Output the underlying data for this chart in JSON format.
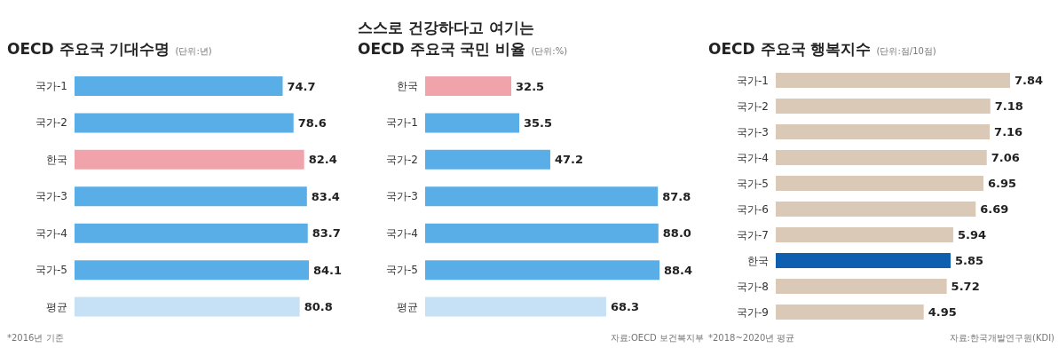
{
  "chart_data": [
    {
      "type": "bar",
      "orientation": "horizontal",
      "title": "OECD 주요국 기대수명",
      "subtitle": "(단위:년)",
      "categories": [
        "국가-1",
        "국가-2",
        "한국",
        "국가-3",
        "국가-4",
        "국가-5",
        "평균"
      ],
      "values": [
        74.7,
        78.6,
        82.4,
        83.4,
        83.7,
        84.1,
        80.8
      ],
      "colors": [
        "#5aaee8",
        "#5aaee8",
        "#f0a3aa",
        "#5aaee8",
        "#5aaee8",
        "#5aaee8",
        "#c6e1f6"
      ],
      "data_labels": true,
      "annotations": [
        "*2016년 기준"
      ]
    },
    {
      "type": "bar",
      "orientation": "horizontal",
      "title": "스스로 건강하다고 여기는\nOECD 주요국 국민 비율",
      "subtitle": "(단위:%)",
      "categories": [
        "한국",
        "국가-1",
        "국가-2",
        "국가-3",
        "국가-4",
        "국가-5",
        "평균"
      ],
      "values": [
        32.5,
        35.5,
        47.2,
        87.8,
        88.0,
        88.4,
        68.3
      ],
      "colors": [
        "#f0a3aa",
        "#5aaee8",
        "#5aaee8",
        "#5aaee8",
        "#5aaee8",
        "#5aaee8",
        "#c6e1f6"
      ],
      "value_labels": [
        "32.5",
        "35.5",
        "47.2",
        "87.8",
        "88.0",
        "88.4",
        "68.3"
      ],
      "annotations": [
        "자료:OECD 보건복지부"
      ]
    },
    {
      "type": "bar",
      "orientation": "horizontal",
      "title": "OECD 주요국 행복지수",
      "subtitle": "(단위:점/10점)",
      "categories": [
        "국가-1",
        "국가-2",
        "국가-3",
        "국가-4",
        "국가-5",
        "국가-6",
        "국가-7",
        "한국",
        "국가-8",
        "국가-9"
      ],
      "values": [
        7.84,
        7.18,
        7.16,
        7.06,
        6.95,
        6.69,
        5.94,
        5.85,
        5.72,
        4.95
      ],
      "colors": [
        "#dbc9b8",
        "#dbc9b8",
        "#dbc9b8",
        "#dbc9b8",
        "#dbc9b8",
        "#dbc9b8",
        "#dbc9b8",
        "#0f5fb0",
        "#dbc9b8",
        "#dbc9b8"
      ],
      "data_labels": true,
      "annotations": [
        "*2018~2020년 평균",
        "자료:한국개발연구원(KDI)"
      ]
    }
  ]
}
